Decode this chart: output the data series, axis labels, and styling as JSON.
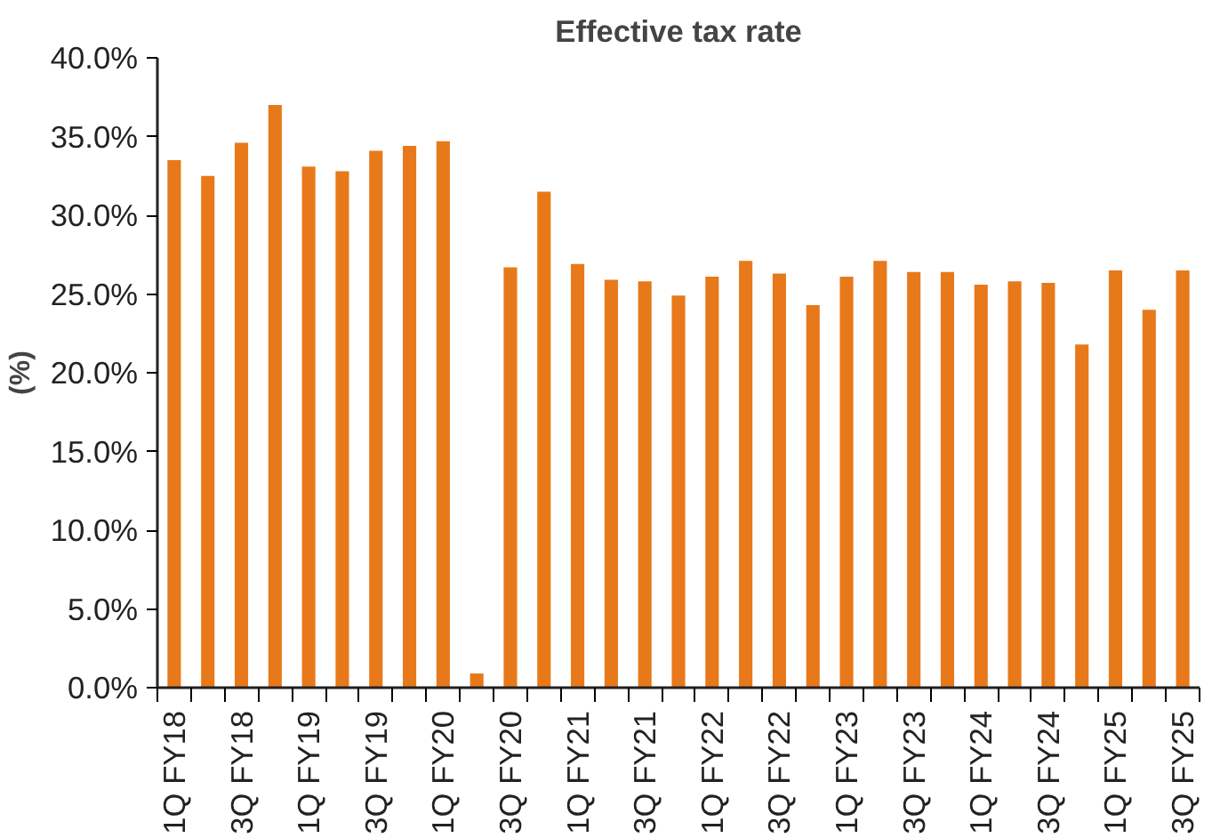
{
  "chart_data": {
    "type": "bar",
    "title": "Effective tax rate",
    "ylabel": "(%)",
    "categories": [
      "1Q FY18",
      null,
      "3Q FY18",
      null,
      "1Q FY19",
      null,
      "3Q FY19",
      null,
      "1Q FY20",
      null,
      "3Q FY20",
      null,
      "1Q FY21",
      null,
      "3Q FY21",
      null,
      "1Q FY22",
      null,
      "3Q FY22",
      null,
      "1Q FY23",
      null,
      "3Q FY23",
      null,
      "1Q FY24",
      null,
      "3Q FY24",
      null,
      "1Q FY25",
      null,
      "3Q FY25"
    ],
    "values": [
      33.5,
      32.5,
      34.6,
      37.0,
      33.1,
      32.8,
      34.1,
      34.4,
      34.7,
      0.9,
      26.7,
      31.5,
      26.9,
      25.9,
      25.8,
      24.9,
      26.1,
      27.1,
      26.3,
      24.3,
      26.1,
      27.1,
      26.4,
      26.4,
      25.6,
      25.8,
      25.7,
      21.8,
      26.5,
      24.0,
      26.5
    ],
    "color": "#e8791a",
    "ylim": [
      0,
      40
    ],
    "yticks": [
      {
        "value": 0,
        "label": "0.0%"
      },
      {
        "value": 5,
        "label": "5.0%"
      },
      {
        "value": 10,
        "label": "10.0%"
      },
      {
        "value": 15,
        "label": "15.0%"
      },
      {
        "value": 20,
        "label": "20.0%"
      },
      {
        "value": 25,
        "label": "25.0%"
      },
      {
        "value": 30,
        "label": "30.0%"
      },
      {
        "value": 35,
        "label": "35.0%"
      },
      {
        "value": 40,
        "label": "40.0%"
      }
    ],
    "grid": false
  }
}
